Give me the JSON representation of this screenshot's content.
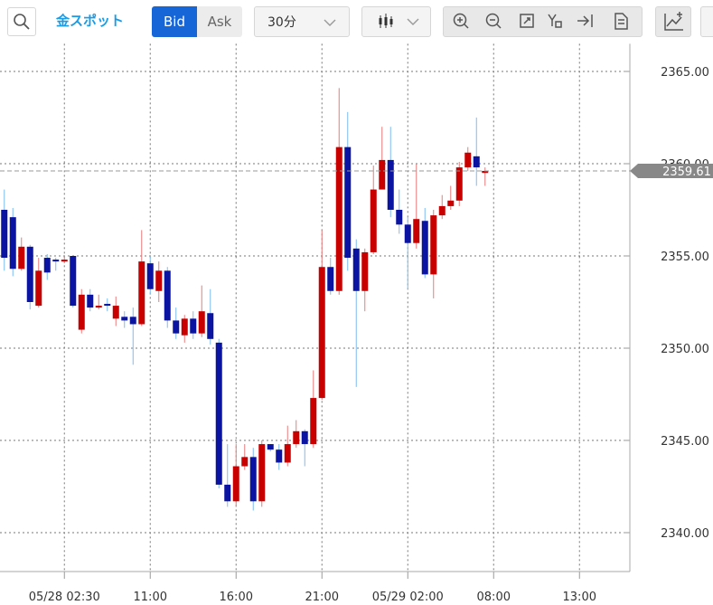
{
  "toolbar": {
    "instrument": "金スポット",
    "bid": "Bid",
    "ask": "Ask",
    "interval": "30分"
  },
  "chart_data": {
    "type": "candlestick",
    "categories": [
      null,
      null,
      null,
      null,
      null,
      null,
      null,
      "05/28 02:30",
      null,
      null,
      null,
      null,
      null,
      null,
      null,
      null,
      null,
      "11:00",
      null,
      null,
      null,
      null,
      null,
      null,
      null,
      null,
      null,
      "16:00",
      null,
      null,
      null,
      null,
      null,
      null,
      null,
      null,
      null,
      "21:00",
      null,
      null,
      null,
      null,
      null,
      null,
      null,
      null,
      null,
      "05/29 02:00",
      null,
      null,
      null,
      null,
      null,
      null,
      null,
      null,
      null,
      "08:00",
      null,
      null,
      null,
      null,
      null,
      null,
      null,
      null,
      null,
      "13:00",
      null,
      null,
      null,
      null,
      null
    ],
    "open": [
      2357.5,
      2357.1,
      2354.3,
      2355.5,
      2352.3,
      2354.9,
      2354.8,
      2354.7,
      2355.0,
      2351.0,
      2352.9,
      2352.2,
      2352.4,
      2351.6,
      2351.7,
      2351.7,
      2351.3,
      2354.6,
      2353.1,
      2354.2,
      2351.5,
      2350.7,
      2351.6,
      2350.8,
      2351.9,
      2350.3,
      2342.6,
      2341.7,
      2343.6,
      2344.1,
      2341.7,
      2344.8,
      2344.5,
      2343.8,
      2344.8,
      2345.5,
      2344.8,
      2347.3,
      2354.4,
      2353.1,
      2360.9,
      2355.4,
      2353.1,
      2355.2,
      2358.6,
      2360.2,
      2357.5,
      2356.7,
      2355.7,
      2356.9,
      2354.0,
      2357.2,
      2357.7,
      2358.0,
      2359.8,
      2360.4,
      2359.5,
      null,
      null,
      null,
      null,
      null,
      null,
      null,
      null,
      null,
      null,
      null,
      null,
      null,
      null,
      null,
      null
    ],
    "high": [
      2358.6,
      2357.6,
      2356.0,
      2355.6,
      2354.9,
      2355.1,
      2354.9,
      2355.0,
      2355.0,
      2353.2,
      2353.2,
      2352.9,
      2352.7,
      2352.8,
      2352.0,
      2352.2,
      2356.4,
      2355.0,
      2354.7,
      2354.4,
      2352.2,
      2351.8,
      2352.0,
      2353.4,
      2353.2,
      2350.5,
      2344.8,
      2344.8,
      2344.8,
      2344.6,
      2345.0,
      2344.8,
      2344.8,
      2345.8,
      2346.1,
      2345.6,
      2348.8,
      2356.4,
      2354.9,
      2364.1,
      2362.8,
      2355.9,
      2355.4,
      2359.9,
      2362.0,
      2362.0,
      2358.6,
      2357.1,
      2360.0,
      2357.6,
      2357.5,
      2358.3,
      2358.8,
      2360.1,
      2360.9,
      2362.5,
      2359.8,
      null,
      null,
      null,
      null,
      null,
      null,
      null,
      null,
      null,
      null,
      null,
      null,
      null,
      null,
      null,
      null
    ],
    "low": [
      2354.2,
      2353.9,
      2354.2,
      2352.1,
      2352.2,
      2353.7,
      2354.2,
      2354.6,
      2352.2,
      2350.8,
      2352.0,
      2352.1,
      2352.0,
      2351.2,
      2351.1,
      2349.1,
      2351.2,
      2352.9,
      2352.5,
      2351.1,
      2350.5,
      2350.3,
      2350.5,
      2350.6,
      2350.2,
      2342.4,
      2341.4,
      2341.4,
      2343.4,
      2341.2,
      2341.4,
      2344.4,
      2343.4,
      2343.6,
      2344.6,
      2343.6,
      2344.6,
      2347.2,
      2352.9,
      2352.9,
      2354.2,
      2347.9,
      2352.0,
      2355.1,
      2358.6,
      2357.1,
      2356.2,
      2353.2,
      2355.4,
      2353.8,
      2352.7,
      2357.0,
      2357.5,
      2357.7,
      2359.6,
      2358.8,
      2358.8,
      null,
      null,
      null,
      null,
      null,
      null,
      null,
      null,
      null,
      null,
      null,
      null,
      null,
      null,
      null,
      null
    ],
    "close": [
      2354.9,
      2354.3,
      2355.5,
      2352.5,
      2354.2,
      2354.1,
      2354.7,
      2354.8,
      2352.3,
      2352.9,
      2352.2,
      2352.3,
      2352.3,
      2352.3,
      2351.5,
      2351.3,
      2354.7,
      2353.2,
      2354.2,
      2351.5,
      2350.8,
      2351.6,
      2350.8,
      2352.0,
      2350.5,
      2342.6,
      2341.7,
      2343.6,
      2344.1,
      2341.7,
      2344.8,
      2344.5,
      2343.8,
      2344.8,
      2345.5,
      2344.8,
      2347.3,
      2354.4,
      2353.1,
      2360.9,
      2354.9,
      2353.1,
      2355.2,
      2358.6,
      2360.2,
      2357.5,
      2356.7,
      2355.7,
      2357.0,
      2354.0,
      2357.2,
      2357.7,
      2358.0,
      2359.8,
      2360.6,
      2359.8,
      2359.61,
      null,
      null,
      null,
      null,
      null,
      null,
      null,
      null,
      null,
      null,
      null,
      null,
      null,
      null,
      null,
      null
    ],
    "up_color": "#c80000",
    "down_color": "#0a14a0",
    "ylim": [
      2338,
      2366.5
    ],
    "yticks": [
      {
        "value": 2340,
        "label": "2340.00"
      },
      {
        "value": 2345,
        "label": "2345.00"
      },
      {
        "value": 2350,
        "label": "2350.00"
      },
      {
        "value": 2355,
        "label": "2355.00"
      },
      {
        "value": 2360,
        "label": "2360.00"
      },
      {
        "value": 2365,
        "label": "2365.00"
      }
    ],
    "grid": true,
    "last_price": 2359.61
  }
}
